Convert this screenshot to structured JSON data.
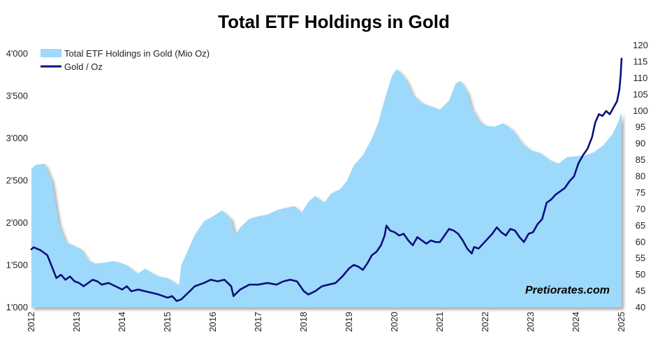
{
  "chart_data": {
    "type": "area+line",
    "title": "Total ETF Holdings in Gold",
    "watermark": "Pretiorates.com",
    "colors": {
      "area": "#9dd9fb",
      "line": "#0b0f7c",
      "text": "#222222"
    },
    "x_axis": {
      "range": [
        2012.0,
        2025.0
      ],
      "ticks": [
        "2012",
        "2013",
        "2014",
        "2015",
        "2016",
        "2017",
        "2018",
        "2019",
        "2020",
        "2021",
        "2022",
        "2023",
        "2024",
        "2025"
      ]
    },
    "y_left": {
      "range": [
        1000,
        4100
      ],
      "ticks": [
        {
          "value": 1000,
          "label": "1'000"
        },
        {
          "value": 1500,
          "label": "1'500"
        },
        {
          "value": 2000,
          "label": "2'000"
        },
        {
          "value": 2500,
          "label": "2'500"
        },
        {
          "value": 3000,
          "label": "3'000"
        },
        {
          "value": 3500,
          "label": "3'500"
        },
        {
          "value": 4000,
          "label": "4'000"
        }
      ]
    },
    "y_right": {
      "range": [
        40,
        120
      ],
      "ticks": [
        {
          "value": 40,
          "label": "40"
        },
        {
          "value": 45,
          "label": "45"
        },
        {
          "value": 50,
          "label": "50"
        },
        {
          "value": 55,
          "label": "55"
        },
        {
          "value": 60,
          "label": "60"
        },
        {
          "value": 65,
          "label": "65"
        },
        {
          "value": 70,
          "label": "70"
        },
        {
          "value": 75,
          "label": "75"
        },
        {
          "value": 80,
          "label": "80"
        },
        {
          "value": 85,
          "label": "85"
        },
        {
          "value": 90,
          "label": "90"
        },
        {
          "value": 95,
          "label": "95"
        },
        {
          "value": 100,
          "label": "100"
        },
        {
          "value": 105,
          "label": "105"
        },
        {
          "value": 110,
          "label": "110"
        },
        {
          "value": 115,
          "label": "115"
        },
        {
          "value": 120,
          "label": "120"
        }
      ]
    },
    "series": [
      {
        "name": "Total ETF Holdings in Gold (Mio Oz)",
        "kind": "area",
        "axis": "left",
        "points": [
          [
            2012.0,
            2640
          ],
          [
            2012.1,
            2690
          ],
          [
            2012.3,
            2700
          ],
          [
            2012.45,
            2500
          ],
          [
            2012.6,
            2000
          ],
          [
            2012.75,
            1780
          ],
          [
            2012.9,
            1740
          ],
          [
            2013.1,
            1690
          ],
          [
            2013.25,
            1560
          ],
          [
            2013.4,
            1520
          ],
          [
            2013.6,
            1530
          ],
          [
            2013.8,
            1550
          ],
          [
            2013.95,
            1530
          ],
          [
            2014.1,
            1500
          ],
          [
            2014.25,
            1440
          ],
          [
            2014.35,
            1400
          ],
          [
            2014.5,
            1460
          ],
          [
            2014.65,
            1410
          ],
          [
            2014.8,
            1370
          ],
          [
            2015.0,
            1350
          ],
          [
            2015.15,
            1300
          ],
          [
            2015.25,
            1260
          ],
          [
            2015.3,
            1500
          ],
          [
            2015.45,
            1680
          ],
          [
            2015.6,
            1860
          ],
          [
            2015.8,
            2020
          ],
          [
            2016.0,
            2080
          ],
          [
            2016.2,
            2150
          ],
          [
            2016.4,
            2050
          ],
          [
            2016.48,
            1850
          ],
          [
            2016.6,
            1950
          ],
          [
            2016.8,
            2050
          ],
          [
            2017.0,
            2080
          ],
          [
            2017.2,
            2100
          ],
          [
            2017.4,
            2150
          ],
          [
            2017.6,
            2180
          ],
          [
            2017.8,
            2200
          ],
          [
            2017.95,
            2120
          ],
          [
            2018.1,
            2250
          ],
          [
            2018.25,
            2320
          ],
          [
            2018.45,
            2240
          ],
          [
            2018.6,
            2350
          ],
          [
            2018.8,
            2400
          ],
          [
            2018.95,
            2500
          ],
          [
            2019.1,
            2680
          ],
          [
            2019.3,
            2800
          ],
          [
            2019.5,
            3000
          ],
          [
            2019.65,
            3200
          ],
          [
            2019.8,
            3500
          ],
          [
            2019.95,
            3750
          ],
          [
            2020.05,
            3820
          ],
          [
            2020.15,
            3770
          ],
          [
            2020.25,
            3700
          ],
          [
            2020.4,
            3520
          ],
          [
            2020.6,
            3420
          ],
          [
            2020.8,
            3380
          ],
          [
            2021.0,
            3340
          ],
          [
            2021.2,
            3450
          ],
          [
            2021.35,
            3650
          ],
          [
            2021.45,
            3680
          ],
          [
            2021.6,
            3550
          ],
          [
            2021.7,
            3360
          ],
          [
            2021.85,
            3220
          ],
          [
            2022.0,
            3150
          ],
          [
            2022.2,
            3140
          ],
          [
            2022.4,
            3180
          ],
          [
            2022.6,
            3100
          ],
          [
            2022.8,
            2950
          ],
          [
            2023.0,
            2860
          ],
          [
            2023.2,
            2830
          ],
          [
            2023.4,
            2750
          ],
          [
            2023.6,
            2700
          ],
          [
            2023.8,
            2780
          ],
          [
            2024.0,
            2790
          ],
          [
            2024.2,
            2800
          ],
          [
            2024.4,
            2840
          ],
          [
            2024.6,
            2920
          ],
          [
            2024.8,
            3050
          ],
          [
            2024.93,
            3200
          ],
          [
            2025.0,
            3310
          ]
        ]
      },
      {
        "name": "Gold / Oz",
        "kind": "line",
        "axis": "right",
        "points": [
          [
            2012.0,
            57.8
          ],
          [
            2012.05,
            58.4
          ],
          [
            2012.2,
            57.5
          ],
          [
            2012.35,
            56.0
          ],
          [
            2012.45,
            52.5
          ],
          [
            2012.55,
            49.0
          ],
          [
            2012.65,
            50.0
          ],
          [
            2012.75,
            48.5
          ],
          [
            2012.85,
            49.5
          ],
          [
            2012.95,
            48.0
          ],
          [
            2013.05,
            47.5
          ],
          [
            2013.15,
            46.5
          ],
          [
            2013.25,
            47.5
          ],
          [
            2013.35,
            48.5
          ],
          [
            2013.45,
            48.0
          ],
          [
            2013.55,
            47.0
          ],
          [
            2013.7,
            47.5
          ],
          [
            2013.85,
            46.5
          ],
          [
            2014.0,
            45.5
          ],
          [
            2014.1,
            46.5
          ],
          [
            2014.2,
            45.0
          ],
          [
            2014.35,
            45.5
          ],
          [
            2014.5,
            45.0
          ],
          [
            2014.65,
            44.5
          ],
          [
            2014.8,
            44.0
          ],
          [
            2015.0,
            43.0
          ],
          [
            2015.1,
            43.5
          ],
          [
            2015.2,
            42.0
          ],
          [
            2015.3,
            42.5
          ],
          [
            2015.45,
            44.5
          ],
          [
            2015.6,
            46.5
          ],
          [
            2015.8,
            47.5
          ],
          [
            2015.95,
            48.5
          ],
          [
            2016.1,
            48.0
          ],
          [
            2016.25,
            48.5
          ],
          [
            2016.4,
            46.5
          ],
          [
            2016.45,
            43.5
          ],
          [
            2016.6,
            45.5
          ],
          [
            2016.8,
            47.0
          ],
          [
            2017.0,
            47.0
          ],
          [
            2017.2,
            47.5
          ],
          [
            2017.4,
            47.0
          ],
          [
            2017.55,
            48.0
          ],
          [
            2017.7,
            48.5
          ],
          [
            2017.85,
            48.0
          ],
          [
            2018.0,
            45.0
          ],
          [
            2018.1,
            44.0
          ],
          [
            2018.25,
            45.0
          ],
          [
            2018.4,
            46.5
          ],
          [
            2018.55,
            47.0
          ],
          [
            2018.7,
            47.5
          ],
          [
            2018.85,
            49.5
          ],
          [
            2019.0,
            52.0
          ],
          [
            2019.1,
            53.0
          ],
          [
            2019.2,
            52.5
          ],
          [
            2019.3,
            51.5
          ],
          [
            2019.4,
            53.5
          ],
          [
            2019.5,
            56.0
          ],
          [
            2019.6,
            57.0
          ],
          [
            2019.7,
            59.0
          ],
          [
            2019.78,
            62.0
          ],
          [
            2019.82,
            65.0
          ],
          [
            2019.9,
            63.5
          ],
          [
            2020.0,
            63.0
          ],
          [
            2020.1,
            62.0
          ],
          [
            2020.2,
            62.5
          ],
          [
            2020.3,
            60.5
          ],
          [
            2020.4,
            59.0
          ],
          [
            2020.5,
            61.5
          ],
          [
            2020.6,
            60.5
          ],
          [
            2020.7,
            59.5
          ],
          [
            2020.8,
            60.5
          ],
          [
            2020.9,
            60.0
          ],
          [
            2021.0,
            60.0
          ],
          [
            2021.1,
            62.0
          ],
          [
            2021.2,
            64.0
          ],
          [
            2021.3,
            63.5
          ],
          [
            2021.4,
            62.5
          ],
          [
            2021.5,
            60.5
          ],
          [
            2021.6,
            58.0
          ],
          [
            2021.7,
            56.5
          ],
          [
            2021.75,
            58.5
          ],
          [
            2021.85,
            58.0
          ],
          [
            2021.95,
            59.5
          ],
          [
            2022.05,
            61.0
          ],
          [
            2022.15,
            62.5
          ],
          [
            2022.25,
            64.5
          ],
          [
            2022.35,
            63.0
          ],
          [
            2022.45,
            62.0
          ],
          [
            2022.55,
            64.0
          ],
          [
            2022.65,
            63.5
          ],
          [
            2022.75,
            61.5
          ],
          [
            2022.85,
            60.0
          ],
          [
            2022.95,
            62.5
          ],
          [
            2023.05,
            63.0
          ],
          [
            2023.15,
            65.5
          ],
          [
            2023.25,
            67.0
          ],
          [
            2023.35,
            72.0
          ],
          [
            2023.45,
            73.0
          ],
          [
            2023.55,
            74.5
          ],
          [
            2023.65,
            75.5
          ],
          [
            2023.75,
            76.5
          ],
          [
            2023.85,
            78.5
          ],
          [
            2023.95,
            80.0
          ],
          [
            2024.05,
            84.0
          ],
          [
            2024.15,
            86.5
          ],
          [
            2024.25,
            88.5
          ],
          [
            2024.35,
            92.0
          ],
          [
            2024.42,
            96.5
          ],
          [
            2024.5,
            99.0
          ],
          [
            2024.58,
            98.5
          ],
          [
            2024.66,
            100.0
          ],
          [
            2024.74,
            99.0
          ],
          [
            2024.82,
            101.0
          ],
          [
            2024.9,
            103.0
          ],
          [
            2024.95,
            106.5
          ],
          [
            2024.98,
            111.0
          ],
          [
            2025.0,
            116.0
          ]
        ]
      }
    ],
    "legend": {
      "placement": "top-left"
    }
  }
}
